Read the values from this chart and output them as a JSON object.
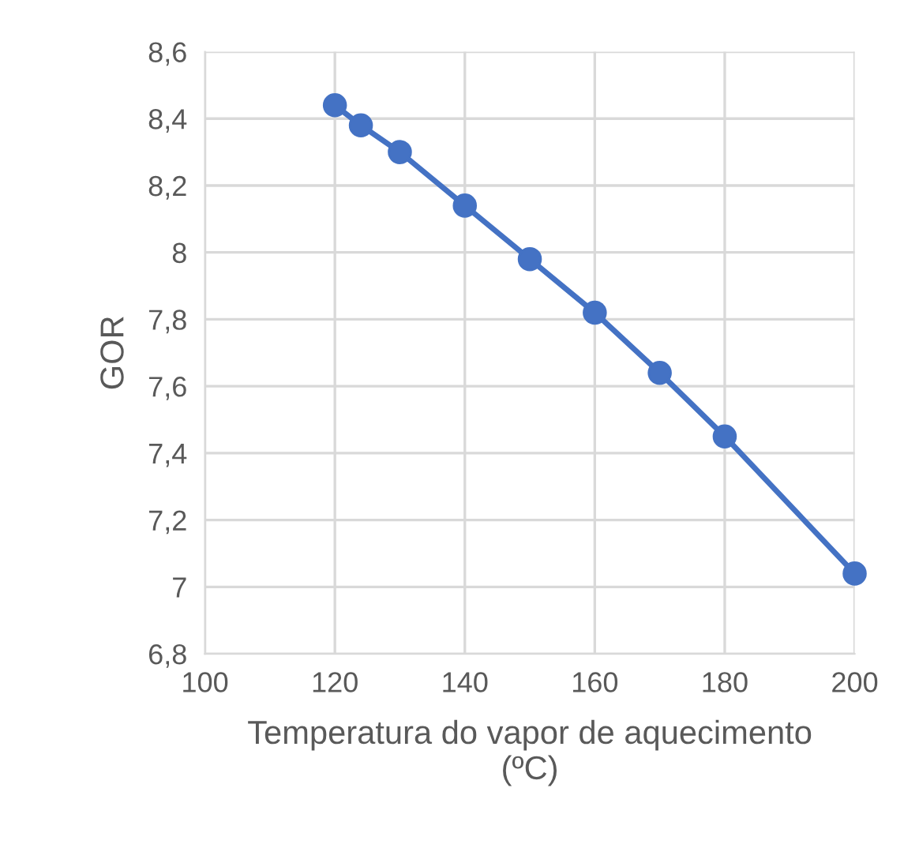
{
  "chart_data": {
    "type": "line",
    "xlabel": "Temperatura do vapor de aquecimento\n(ºC)",
    "ylabel": "GOR",
    "x": [
      120,
      124,
      130,
      140,
      150,
      160,
      170,
      180,
      200
    ],
    "series": [
      {
        "color": "#4472c4",
        "values": [
          8.44,
          8.38,
          8.3,
          8.14,
          7.98,
          7.82,
          7.64,
          7.45,
          7.04
        ]
      }
    ],
    "marker": "circle",
    "line_style": "solid",
    "grid": true,
    "xlim": [
      100,
      200
    ],
    "xticks": [
      100,
      120,
      140,
      160,
      180,
      200
    ],
    "ylim": [
      6.8,
      8.6
    ],
    "yticks": [
      {
        "value": 6.8,
        "label": "6,8"
      },
      {
        "value": 7.0,
        "label": "7"
      },
      {
        "value": 7.2,
        "label": "7,2"
      },
      {
        "value": 7.4,
        "label": "7,4"
      },
      {
        "value": 7.6,
        "label": "7,6"
      },
      {
        "value": 7.8,
        "label": "7,8"
      },
      {
        "value": 8.0,
        "label": "8"
      },
      {
        "value": 8.2,
        "label": "8,2"
      },
      {
        "value": 8.4,
        "label": "8,4"
      },
      {
        "value": 8.6,
        "label": "8,6"
      }
    ]
  }
}
